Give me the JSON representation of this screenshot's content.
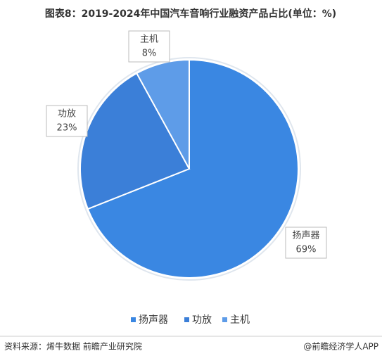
{
  "chart_data": {
    "type": "pie",
    "title": "图表8：2019-2024年中国汽车音响行业融资产品占比(单位：%)",
    "categories": [
      "扬声器",
      "功放",
      "主机"
    ],
    "values": [
      69,
      23,
      8
    ],
    "value_labels": [
      "69%",
      "23%",
      "8%"
    ],
    "colors": [
      "#3a87e2",
      "#3b7fd8",
      "#5e9ce8"
    ],
    "legend": "bottom",
    "source": "资料来源：烯牛数据 前瞻产业研究院",
    "credit": "@前瞻经济学人APP"
  }
}
